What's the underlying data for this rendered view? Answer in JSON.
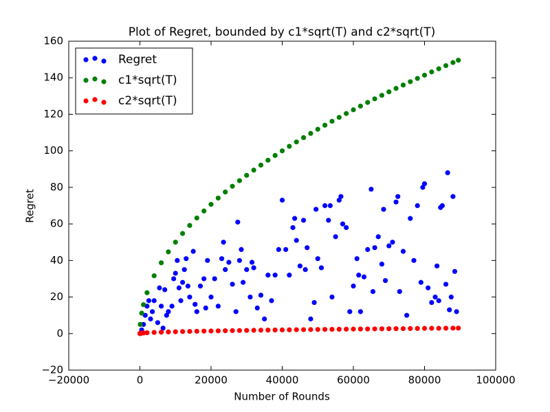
{
  "chart_data": {
    "type": "scatter",
    "title": "Plot of Regret, bounded by c1*sqrt(T) and c2*sqrt(T)",
    "x_label": "Number of Rounds",
    "y_label": "Regret",
    "xlim": [
      -20000,
      100000
    ],
    "xticks": [
      {
        "value": -20000,
        "label": "−20000"
      },
      0,
      20000,
      40000,
      60000,
      80000,
      100000
    ],
    "ylim": [
      -20,
      160
    ],
    "yticks": [
      {
        "value": -20,
        "label": "−20"
      },
      0,
      20,
      40,
      60,
      80,
      100,
      120,
      140,
      160
    ],
    "grid": false,
    "legend": "upper left",
    "series": [
      {
        "name": "Regret",
        "color": "#0000ff",
        "x": [
          500,
          1000,
          1500,
          2000,
          2500,
          3000,
          3500,
          4000,
          5000,
          5500,
          6000,
          6500,
          7000,
          7500,
          8000,
          9000,
          9500,
          10000,
          10500,
          11000,
          11500,
          12000,
          12500,
          13000,
          13500,
          14000,
          15000,
          15500,
          16000,
          17000,
          18000,
          18500,
          19000,
          20000,
          21000,
          22000,
          23000,
          23500,
          24000,
          25000,
          26000,
          27000,
          27500,
          28000,
          28500,
          29000,
          30000,
          31000,
          31500,
          32000,
          33000,
          34000,
          35000,
          36000,
          37000,
          38000,
          39000,
          40000,
          41000,
          42000,
          43000,
          43500,
          44000,
          45000,
          46000,
          46500,
          47000,
          48000,
          49000,
          49500,
          50000,
          51000,
          52000,
          53000,
          53500,
          54000,
          55000,
          56000,
          56500,
          57000,
          58000,
          59000,
          60000,
          61000,
          61500,
          62000,
          63000,
          64000,
          65000,
          65500,
          66000,
          67000,
          68000,
          68500,
          69000,
          70000,
          71000,
          72000,
          72500,
          73000,
          74000,
          75000,
          76000,
          77000,
          78000,
          79000,
          79500,
          80000,
          81000,
          82000,
          83000,
          83500,
          84000,
          84500,
          85000,
          86000,
          86500,
          87000,
          87500,
          88000,
          88500,
          89000
        ],
        "values": [
          2,
          5,
          10,
          15,
          18,
          8,
          12,
          18,
          6,
          25,
          15,
          3,
          24,
          10,
          12,
          15,
          30,
          33,
          40,
          25,
          18,
          28,
          35,
          41,
          26,
          20,
          45,
          16,
          12,
          26,
          30,
          14,
          40,
          20,
          30,
          15,
          41,
          50,
          35,
          39,
          27,
          12,
          61,
          40,
          46,
          28,
          35,
          20,
          39,
          36,
          14,
          21,
          8,
          32,
          18,
          32,
          46,
          73,
          46,
          32,
          58,
          63,
          51,
          37,
          62,
          35,
          47,
          8,
          17,
          68,
          41,
          36,
          70,
          62,
          70,
          20,
          53,
          73,
          75,
          60,
          58,
          12,
          26,
          41,
          32,
          12,
          31,
          46,
          79,
          23,
          47,
          53,
          38,
          68,
          29,
          48,
          50,
          72,
          75,
          23,
          45,
          10,
          63,
          40,
          70,
          28,
          80,
          82,
          25,
          17,
          20,
          37,
          18,
          69,
          70,
          27,
          88,
          13,
          20,
          75,
          34,
          12
        ]
      },
      {
        "name": "c1*sqrt(T)",
        "color": "#008000",
        "x": [
          0,
          100,
          500,
          1000,
          2000,
          4000,
          6000,
          8000,
          10000,
          12000,
          14000,
          16000,
          18000,
          20000,
          22000,
          24000,
          26000,
          28000,
          30000,
          32000,
          34000,
          36000,
          38000,
          40000,
          42000,
          44000,
          46000,
          48000,
          50000,
          52000,
          54000,
          56000,
          58000,
          60000,
          62000,
          64000,
          66000,
          68000,
          70000,
          72000,
          74000,
          76000,
          78000,
          80000,
          82000,
          84000,
          86000,
          88000,
          89500
        ],
        "values": [
          0,
          5,
          11.18,
          15.81,
          22.36,
          31.62,
          38.73,
          44.72,
          50,
          54.77,
          59.16,
          63.25,
          67.08,
          70.71,
          74.16,
          77.46,
          80.62,
          83.67,
          86.6,
          89.44,
          92.2,
          94.87,
          97.47,
          100,
          102.47,
          104.88,
          107.24,
          109.54,
          111.8,
          114.02,
          116.19,
          118.32,
          120.42,
          122.47,
          124.5,
          126.49,
          128.45,
          130.38,
          132.29,
          134.16,
          136.01,
          137.84,
          139.64,
          141.42,
          143.18,
          144.91,
          146.63,
          148.32,
          149.58
        ]
      },
      {
        "name": "c2*sqrt(T)",
        "color": "#ff0000",
        "x": [
          0,
          100,
          500,
          1000,
          2000,
          4000,
          6000,
          8000,
          10000,
          12000,
          14000,
          16000,
          18000,
          20000,
          22000,
          24000,
          26000,
          28000,
          30000,
          32000,
          34000,
          36000,
          38000,
          40000,
          42000,
          44000,
          46000,
          48000,
          50000,
          52000,
          54000,
          56000,
          58000,
          60000,
          62000,
          64000,
          66000,
          68000,
          70000,
          72000,
          74000,
          76000,
          78000,
          80000,
          82000,
          84000,
          86000,
          88000,
          89500
        ],
        "values": [
          0,
          0.1,
          0.22,
          0.32,
          0.45,
          0.63,
          0.77,
          0.89,
          1,
          1.1,
          1.18,
          1.26,
          1.34,
          1.41,
          1.48,
          1.55,
          1.61,
          1.67,
          1.73,
          1.79,
          1.84,
          1.9,
          1.95,
          2,
          2.05,
          2.1,
          2.14,
          2.19,
          2.24,
          2.28,
          2.32,
          2.37,
          2.41,
          2.45,
          2.49,
          2.53,
          2.57,
          2.61,
          2.65,
          2.68,
          2.72,
          2.76,
          2.79,
          2.83,
          2.87,
          2.9,
          2.93,
          2.97,
          2.99
        ]
      }
    ]
  }
}
